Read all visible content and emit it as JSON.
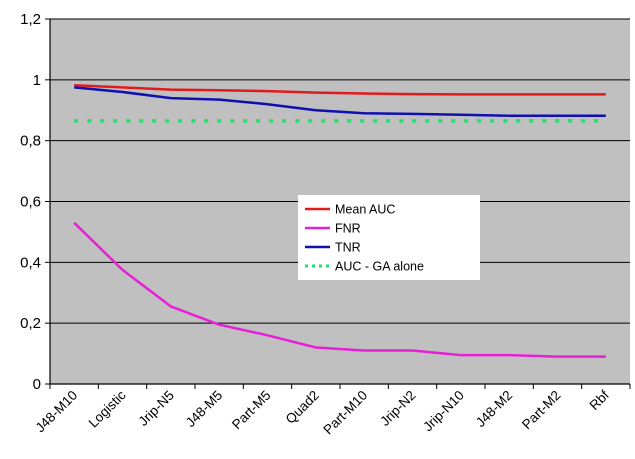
{
  "chart_data": {
    "type": "line",
    "title": "",
    "xlabel": "",
    "ylabel": "",
    "categories": [
      "J48-M10",
      "Logistic",
      "Jrip-N5",
      "J48-M5",
      "Part-M5",
      "Quad2",
      "Part-M10",
      "Jrip-N2",
      "Jrip-N10",
      "J48-M2",
      "Part-M2",
      "Rbf"
    ],
    "ylim": [
      0,
      1.2
    ],
    "yticks": [
      "0",
      "0,2",
      "0,4",
      "0,6",
      "0,8",
      "1",
      "1,2"
    ],
    "grid": true,
    "legend_position": "center",
    "plot_background": "#c0c0c0",
    "series": [
      {
        "name": "Mean AUC",
        "color": "#e31a1c",
        "style": "solid",
        "values": [
          0.982,
          0.975,
          0.968,
          0.966,
          0.963,
          0.958,
          0.955,
          0.953,
          0.952,
          0.952,
          0.952,
          0.952
        ]
      },
      {
        "name": "FNR",
        "color": "#e81fd8",
        "style": "solid",
        "values": [
          0.53,
          0.375,
          0.255,
          0.195,
          0.16,
          0.12,
          0.11,
          0.11,
          0.095,
          0.095,
          0.09,
          0.09
        ]
      },
      {
        "name": "TNR",
        "color": "#1010b0",
        "style": "solid",
        "values": [
          0.975,
          0.96,
          0.94,
          0.935,
          0.92,
          0.9,
          0.89,
          0.888,
          0.885,
          0.882,
          0.882,
          0.882
        ]
      },
      {
        "name": "AUC - GA alone",
        "color": "#22e06a",
        "style": "dotted",
        "values": [
          0.865,
          0.865,
          0.865,
          0.865,
          0.865,
          0.865,
          0.865,
          0.865,
          0.865,
          0.865,
          0.865,
          0.865
        ]
      }
    ]
  }
}
